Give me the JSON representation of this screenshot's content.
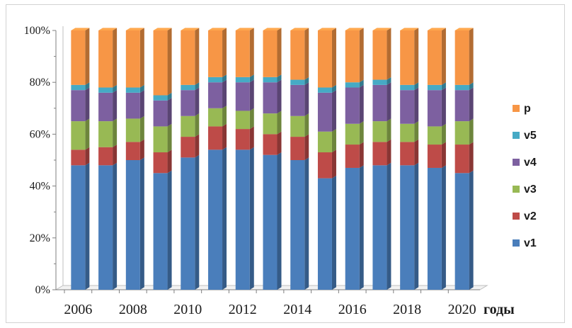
{
  "chart_data": {
    "type": "bar",
    "stacked": true,
    "percent": true,
    "categories": [
      "2006",
      "2007",
      "2008",
      "2009",
      "2010",
      "2011",
      "2012",
      "2013",
      "2014",
      "2015",
      "2016",
      "2017",
      "2018",
      "2019",
      "2020"
    ],
    "x_tick_labels": [
      "2006",
      "2008",
      "2010",
      "2012",
      "2014",
      "2016",
      "2018",
      "2020"
    ],
    "xlabel": "годы",
    "ylabel": "",
    "ylim": [
      0,
      100
    ],
    "y_tick_labels": [
      "0%",
      "20%",
      "40%",
      "60%",
      "80%",
      "100%"
    ],
    "series": [
      {
        "name": "v1",
        "color": "#4a7ebb",
        "values": [
          48,
          48,
          50,
          45,
          51,
          54,
          54,
          52,
          50,
          43,
          47,
          48,
          48,
          47,
          45
        ]
      },
      {
        "name": "v2",
        "color": "#be4b48",
        "values": [
          6,
          7,
          7,
          8,
          8,
          9,
          8,
          8,
          9,
          10,
          9,
          9,
          9,
          9,
          11
        ]
      },
      {
        "name": "v3",
        "color": "#98b954",
        "values": [
          11,
          10,
          9,
          10,
          8,
          7,
          7,
          8,
          8,
          8,
          8,
          8,
          7,
          7,
          9
        ]
      },
      {
        "name": "v4",
        "color": "#7d60a0",
        "values": [
          12,
          11,
          10,
          10,
          10,
          10,
          11,
          12,
          12,
          15,
          14,
          14,
          13,
          14,
          12
        ]
      },
      {
        "name": "v5",
        "color": "#46aac5",
        "values": [
          2,
          2,
          2,
          2,
          2,
          2,
          2,
          2,
          2,
          2,
          2,
          2,
          2,
          2,
          2
        ]
      },
      {
        "name": "p",
        "color": "#f79646",
        "values": [
          21,
          22,
          22,
          25,
          21,
          18,
          18,
          18,
          19,
          22,
          20,
          19,
          21,
          21,
          21
        ]
      }
    ],
    "legend_position": "right",
    "legend_order": [
      "p",
      "v5",
      "v4",
      "v3",
      "v2",
      "v1"
    ],
    "grid": false,
    "three_d": true
  }
}
